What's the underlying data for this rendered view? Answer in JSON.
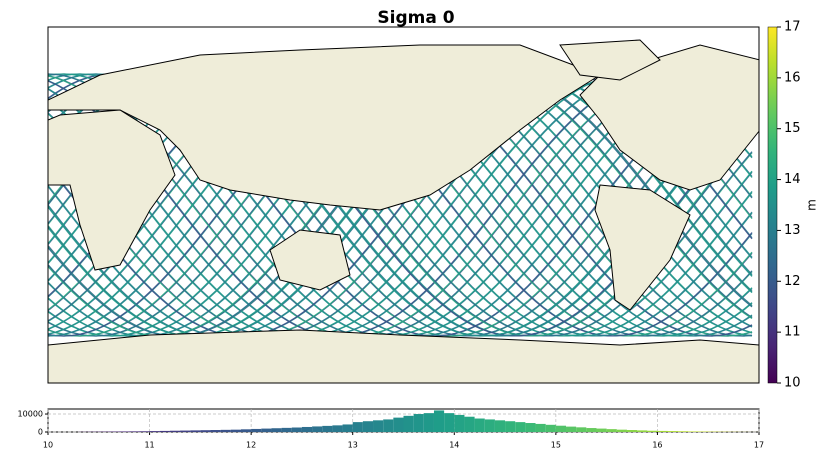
{
  "chart_data": [
    {
      "type": "map",
      "title": "Sigma 0",
      "cmap": "viridis",
      "clim": [
        10,
        17
      ],
      "colorbar_label": "m",
      "colorbar_ticks": [
        10,
        11,
        12,
        13,
        14,
        15,
        16,
        17
      ]
    },
    {
      "type": "histogram",
      "cmap": "viridis",
      "clim": [
        10,
        17
      ],
      "bins": [
        10,
        10.1,
        10.2,
        10.3,
        10.4,
        10.5,
        10.6,
        10.7,
        10.8,
        10.9,
        11,
        11.1,
        11.2,
        11.3,
        11.4,
        11.5,
        11.6,
        11.7,
        11.8,
        11.9,
        12,
        12.1,
        12.2,
        12.3,
        12.4,
        12.5,
        12.6,
        12.7,
        12.8,
        12.9,
        13,
        13.1,
        13.2,
        13.3,
        13.4,
        13.5,
        13.6,
        13.7,
        13.8,
        13.9,
        14,
        14.1,
        14.2,
        14.3,
        14.4,
        14.5,
        14.6,
        14.7,
        14.8,
        14.9,
        15,
        15.1,
        15.2,
        15.3,
        15.4,
        15.5,
        15.6,
        15.7,
        15.8,
        15.9,
        16,
        16.1,
        16.2,
        16.3,
        16.4,
        16.5,
        16.6,
        16.7,
        16.8,
        16.9,
        17
      ],
      "values": [
        0,
        0,
        0,
        100,
        150,
        200,
        250,
        300,
        350,
        400,
        500,
        600,
        700,
        800,
        900,
        1000,
        1100,
        1200,
        1300,
        1500,
        1700,
        1900,
        2100,
        2300,
        2500,
        2800,
        3100,
        3400,
        3700,
        4200,
        5500,
        6000,
        6500,
        7000,
        8000,
        9000,
        10000,
        10500,
        12000,
        10500,
        9500,
        8500,
        7500,
        7000,
        6500,
        6000,
        5500,
        5000,
        4500,
        4000,
        3500,
        3000,
        2600,
        2200,
        1900,
        1600,
        1300,
        1100,
        900,
        700,
        600,
        500,
        400,
        300,
        250,
        200,
        150,
        100,
        50,
        20
      ],
      "xlim": [
        10,
        17
      ],
      "xticks": [
        10,
        11,
        12,
        13,
        14,
        15,
        16,
        17
      ],
      "ylim": [
        0,
        12800
      ],
      "yticks": [
        0,
        10000
      ],
      "grid": true
    }
  ]
}
